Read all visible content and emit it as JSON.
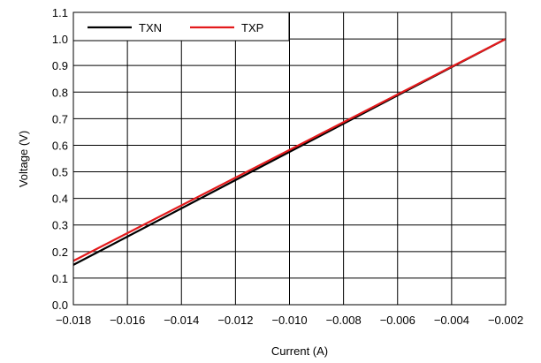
{
  "chart_data": {
    "type": "line",
    "title": "",
    "xlabel": "Current (A)",
    "ylabel": "Voltage (V)",
    "xlim": [
      -0.018,
      -0.002
    ],
    "ylim": [
      0.0,
      1.1
    ],
    "x_ticks": [
      -0.018,
      -0.016,
      -0.014,
      -0.012,
      -0.01,
      -0.008,
      -0.006,
      -0.004,
      -0.002
    ],
    "x_tick_labels": [
      "−0.018",
      "−0.016",
      "−0.014",
      "−0.012",
      "−0.010",
      "−0.008",
      "−0.006",
      "−0.004",
      "−0.002"
    ],
    "y_ticks": [
      0.0,
      0.1,
      0.2,
      0.3,
      0.4,
      0.5,
      0.6,
      0.7,
      0.8,
      0.9,
      1.0,
      1.1
    ],
    "y_tick_labels": [
      "0.0",
      "0.1",
      "0.2",
      "0.3",
      "0.4",
      "0.5",
      "0.6",
      "0.7",
      "0.8",
      "0.9",
      "1.0",
      "1.1"
    ],
    "grid": true,
    "legend_position": "top-left",
    "series": [
      {
        "name": "TXN",
        "color": "#000000",
        "x": [
          -0.018,
          -0.002
        ],
        "y": [
          0.15,
          1.0
        ]
      },
      {
        "name": "TXP",
        "color": "#e31a1c",
        "x": [
          -0.018,
          -0.002
        ],
        "y": [
          0.165,
          1.0
        ]
      }
    ]
  }
}
